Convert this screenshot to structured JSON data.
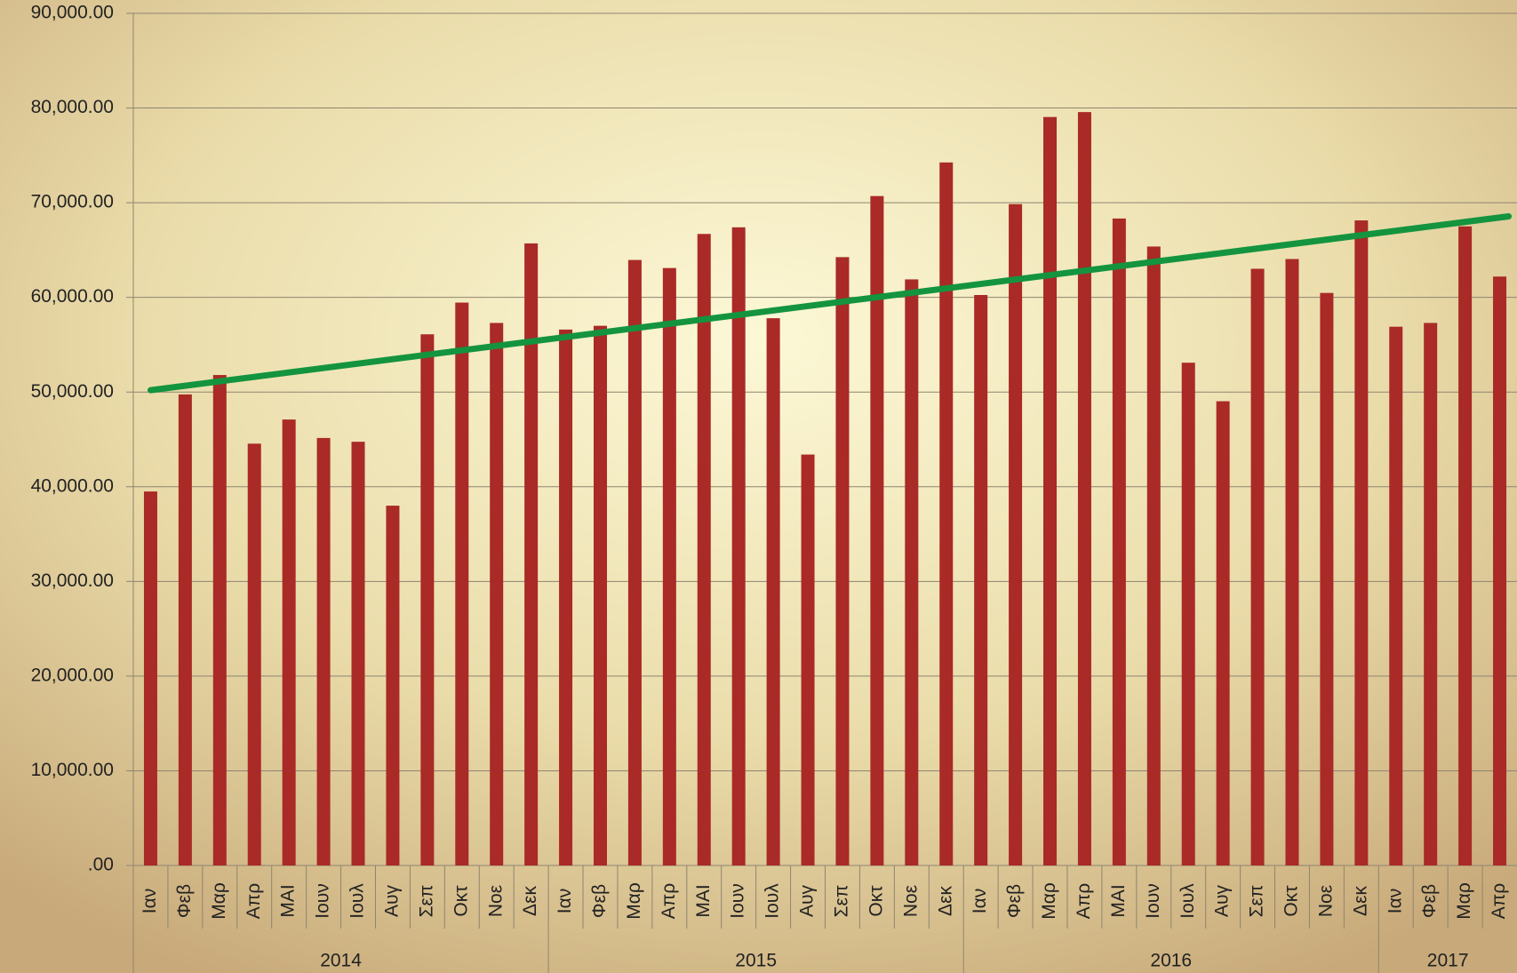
{
  "chart_data": {
    "type": "bar",
    "groups": [
      {
        "name": "2014",
        "categories": [
          "Ιαν",
          "Φεβ",
          "Μαρ",
          "Απρ",
          "ΜΑΙ",
          "Ιουν",
          "Ιουλ",
          "Αυγ",
          "Σεπ",
          "Οκτ",
          "Νοε",
          "Δεκ"
        ]
      },
      {
        "name": "2015",
        "categories": [
          "Ιαν",
          "Φεβ",
          "Μαρ",
          "Απρ",
          "ΜΑΙ",
          "Ιουν",
          "Ιουλ",
          "Αυγ",
          "Σεπ",
          "Οκτ",
          "Νοε",
          "Δεκ"
        ]
      },
      {
        "name": "2016",
        "categories": [
          "Ιαν",
          "Φεβ",
          "Μαρ",
          "Απρ",
          "ΜΑΙ",
          "Ιουν",
          "Ιουλ",
          "Αυγ",
          "Σεπ",
          "Οκτ",
          "Νοε",
          "Δεκ"
        ]
      },
      {
        "name": "2017",
        "categories": [
          "Ιαν",
          "Φεβ",
          "Μαρ",
          "Απρ"
        ]
      }
    ],
    "values": [
      39500,
      49750,
      51800,
      44550,
      47100,
      45150,
      44750,
      38000,
      56100,
      59450,
      57300,
      65700,
      56600,
      57000,
      63950,
      63100,
      66700,
      67400,
      57800,
      43400,
      64250,
      70700,
      61900,
      74250,
      60250,
      69850,
      79050,
      79570,
      68330,
      65370,
      53100,
      49030,
      63020,
      64050,
      60470,
      68130,
      56900,
      57300,
      67500,
      62200
    ],
    "color": "#a92a26",
    "trendline": {
      "color": "#14943f",
      "start": 50200,
      "end": 68500
    },
    "ylim": [
      0,
      90000
    ],
    "yticks": [
      {
        "value": 0,
        "label": ".00"
      },
      {
        "value": 10000,
        "label": "10,000.00"
      },
      {
        "value": 20000,
        "label": "20,000.00"
      },
      {
        "value": 30000,
        "label": "30,000.00"
      },
      {
        "value": 40000,
        "label": "40,000.00"
      },
      {
        "value": 50000,
        "label": "50,000.00"
      },
      {
        "value": 60000,
        "label": "60,000.00"
      },
      {
        "value": 70000,
        "label": "70,000.00"
      },
      {
        "value": 80000,
        "label": "80,000.00"
      },
      {
        "value": 90000,
        "label": "90,000.00"
      }
    ],
    "grid": true
  }
}
